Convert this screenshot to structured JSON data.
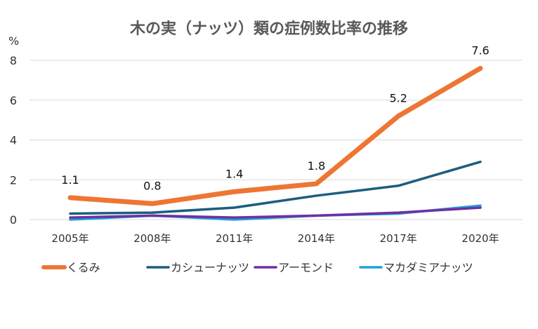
{
  "chart_data": {
    "type": "line",
    "title": "木の実（ナッツ）類の症例数比率の推移",
    "ylabel": "%",
    "xlabel": "",
    "categories": [
      "2005年",
      "2008年",
      "2011年",
      "2014年",
      "2017年",
      "2020年"
    ],
    "ylim": [
      0,
      8
    ],
    "yticks": [
      0,
      2,
      4,
      6,
      8
    ],
    "grid": true,
    "legend": "bottom",
    "series": [
      {
        "name": "くるみ",
        "color": "#ED7634",
        "values": [
          1.1,
          0.8,
          1.4,
          1.8,
          5.2,
          7.6
        ],
        "labels": [
          "1.1",
          "0.8",
          "1.4",
          "1.8",
          "5.2",
          "7.6"
        ]
      },
      {
        "name": "カシューナッツ",
        "color": "#1B5E7E",
        "values": [
          0.3,
          0.35,
          0.6,
          1.2,
          1.7,
          2.9
        ]
      },
      {
        "name": "アーモンド",
        "color": "#7030A0",
        "values": [
          0.1,
          0.2,
          0.1,
          0.2,
          0.35,
          0.6
        ]
      },
      {
        "name": "マカダミアナッツ",
        "color": "#1CA3DB",
        "values": [
          0.0,
          0.2,
          0.0,
          0.2,
          0.3,
          0.7
        ]
      }
    ]
  }
}
